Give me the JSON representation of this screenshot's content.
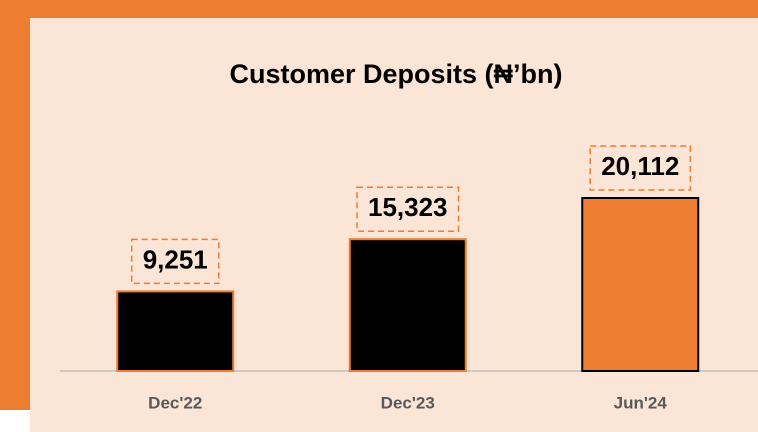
{
  "chart_data": {
    "type": "bar",
    "title": "Customer Deposits (₦’bn)",
    "categories": [
      "Dec'22",
      "Dec'23",
      "Jun'24"
    ],
    "values": [
      9251,
      15323,
      20112
    ],
    "value_labels": [
      "9,251",
      "15,323",
      "20,112"
    ],
    "colors": [
      "#000000",
      "#000000",
      "#ed7d31"
    ],
    "grid": false
  }
}
